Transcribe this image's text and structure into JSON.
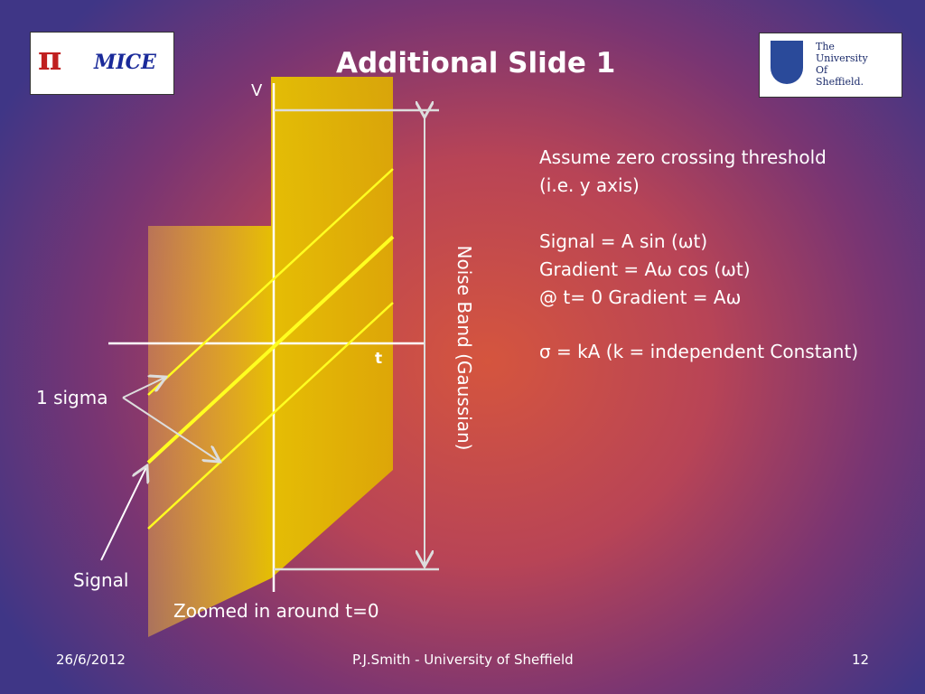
{
  "header": {
    "title": "Additional Slide 1",
    "left_logo": {
      "text": "MICE"
    },
    "right_logo": {
      "lines": [
        "The",
        "University",
        "Of",
        "Sheffield."
      ]
    }
  },
  "diagram": {
    "v_axis_label": "V",
    "t_axis_label": "t",
    "noise_band_label": "Noise Band (Gaussian)",
    "sigma_label": "1 sigma",
    "signal_label": "Signal",
    "caption": "Zoomed in around t=0"
  },
  "body": {
    "lines": [
      "Assume zero crossing threshold",
      "(i.e. y axis)",
      "Signal = A sin (ωt)",
      "Gradient = Aω cos (ωt)",
      "@ t= 0  Gradient = Aω",
      "σ = kA (k = independent Constant)"
    ]
  },
  "footer": {
    "date": "26/6/2012",
    "author": "P.J.Smith - University of Sheffield",
    "page": "12"
  }
}
